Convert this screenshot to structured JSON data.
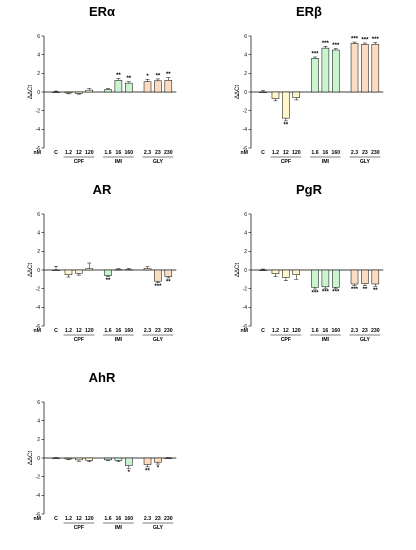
{
  "figure": {
    "units_label": "nM"
  },
  "colors": {
    "CPF": "#fff6cc",
    "IMI": "#c9f4cf",
    "GLY": "#fcdcc0",
    "C": "#ffffff",
    "stroke": "#000000"
  },
  "chart_data": [
    {
      "type": "bar",
      "title": "ERα",
      "ylabel": "ΔΔCt",
      "ylim": [
        -6,
        6
      ],
      "yticks": [
        -6,
        -4,
        -2,
        0,
        2,
        4,
        6
      ],
      "categories": [
        "C",
        "1.2",
        "12",
        "120",
        "1.6",
        "16",
        "160",
        "2.3",
        "23",
        "230"
      ],
      "groups": [
        {
          "name": "CPF",
          "from": 1,
          "to": 3
        },
        {
          "name": "IMI",
          "from": 4,
          "to": 6
        },
        {
          "name": "GLY",
          "from": 7,
          "to": 9
        }
      ],
      "series": [
        {
          "values": [
            0.0,
            -0.1,
            -0.15,
            0.2,
            0.25,
            1.25,
            0.95,
            1.1,
            1.2,
            1.25
          ],
          "errors": [
            0.1,
            0.1,
            0.08,
            0.15,
            0.1,
            0.2,
            0.15,
            0.25,
            0.2,
            0.3
          ],
          "significance": [
            "",
            "",
            "",
            "",
            "",
            "**",
            "**",
            "*",
            "**",
            "**"
          ]
        }
      ]
    },
    {
      "type": "bar",
      "title": "ERβ",
      "ylabel": "ΔΔCt",
      "ylim": [
        -6,
        6
      ],
      "yticks": [
        -6,
        -4,
        -2,
        0,
        2,
        4,
        6
      ],
      "categories": [
        "C",
        "1.2",
        "12",
        "120",
        "1.6",
        "16",
        "160",
        "2.3",
        "23",
        "230"
      ],
      "groups": [
        {
          "name": "CPF",
          "from": 1,
          "to": 3
        },
        {
          "name": "IMI",
          "from": 4,
          "to": 6
        },
        {
          "name": "GLY",
          "from": 7,
          "to": 9
        }
      ],
      "series": [
        {
          "values": [
            0.0,
            -0.7,
            -2.8,
            -0.6,
            3.6,
            4.7,
            4.5,
            5.2,
            5.1,
            5.1
          ],
          "errors": [
            0.15,
            0.25,
            0.3,
            0.25,
            0.15,
            0.2,
            0.15,
            0.15,
            0.15,
            0.2
          ],
          "significance": [
            "",
            "",
            "**",
            "",
            "***",
            "***",
            "***",
            "***",
            "***",
            "***"
          ]
        }
      ]
    },
    {
      "type": "bar",
      "title": "AR",
      "ylabel": "ΔΔCt",
      "ylim": [
        -6,
        6
      ],
      "yticks": [
        -6,
        -4,
        -2,
        0,
        2,
        4,
        6
      ],
      "categories": [
        "C",
        "1.2",
        "12",
        "120",
        "1.6",
        "16",
        "160",
        "2.3",
        "23",
        "230"
      ],
      "groups": [
        {
          "name": "CPF",
          "from": 1,
          "to": 3
        },
        {
          "name": "IMI",
          "from": 4,
          "to": 6
        },
        {
          "name": "GLY",
          "from": 7,
          "to": 9
        }
      ],
      "series": [
        {
          "values": [
            0.0,
            -0.5,
            -0.35,
            0.15,
            -0.6,
            0.05,
            0.05,
            0.15,
            -1.2,
            -0.7
          ],
          "errors": [
            0.4,
            0.25,
            0.2,
            0.6,
            0.1,
            0.1,
            0.1,
            0.2,
            0.15,
            0.15
          ],
          "significance": [
            "",
            "",
            "",
            "",
            "**",
            "",
            "",
            "",
            "***",
            "**"
          ]
        }
      ]
    },
    {
      "type": "bar",
      "title": "PgR",
      "ylabel": "ΔΔCt",
      "ylim": [
        -6,
        6
      ],
      "yticks": [
        -6,
        -4,
        -2,
        0,
        2,
        4,
        6
      ],
      "categories": [
        "C",
        "1.2",
        "12",
        "120",
        "1.6",
        "16",
        "160",
        "2.3",
        "23",
        "230"
      ],
      "groups": [
        {
          "name": "CPF",
          "from": 1,
          "to": 3
        },
        {
          "name": "IMI",
          "from": 4,
          "to": 6
        },
        {
          "name": "GLY",
          "from": 7,
          "to": 9
        }
      ],
      "series": [
        {
          "values": [
            0.0,
            -0.4,
            -0.8,
            -0.5,
            -1.85,
            -1.8,
            -1.85,
            -1.5,
            -1.45,
            -1.5
          ],
          "errors": [
            0.1,
            0.3,
            0.35,
            0.5,
            0.2,
            0.15,
            0.1,
            0.15,
            0.2,
            0.25
          ],
          "significance": [
            "",
            "",
            "",
            "",
            "***",
            "***",
            "***",
            "***",
            "**",
            "**"
          ]
        }
      ]
    },
    {
      "type": "bar",
      "title": "AhR",
      "ylabel": "ΔΔCt",
      "ylim": [
        -6,
        6
      ],
      "yticks": [
        -6,
        -4,
        -2,
        0,
        2,
        4,
        6
      ],
      "categories": [
        "C",
        "1.2",
        "12",
        "120",
        "1.6",
        "16",
        "160",
        "2.3",
        "23",
        "230"
      ],
      "groups": [
        {
          "name": "CPF",
          "from": 1,
          "to": 3
        },
        {
          "name": "IMI",
          "from": 4,
          "to": 6
        },
        {
          "name": "GLY",
          "from": 7,
          "to": 9
        }
      ],
      "series": [
        {
          "values": [
            0.0,
            -0.1,
            -0.2,
            -0.25,
            -0.2,
            -0.25,
            -0.8,
            -0.7,
            -0.45,
            0.0
          ],
          "errors": [
            0.05,
            0.08,
            0.15,
            0.15,
            0.1,
            0.15,
            0.3,
            0.25,
            0.2,
            0.05
          ],
          "significance": [
            "",
            "",
            "",
            "",
            "",
            "",
            "*",
            "**",
            "*",
            ""
          ]
        }
      ]
    }
  ]
}
